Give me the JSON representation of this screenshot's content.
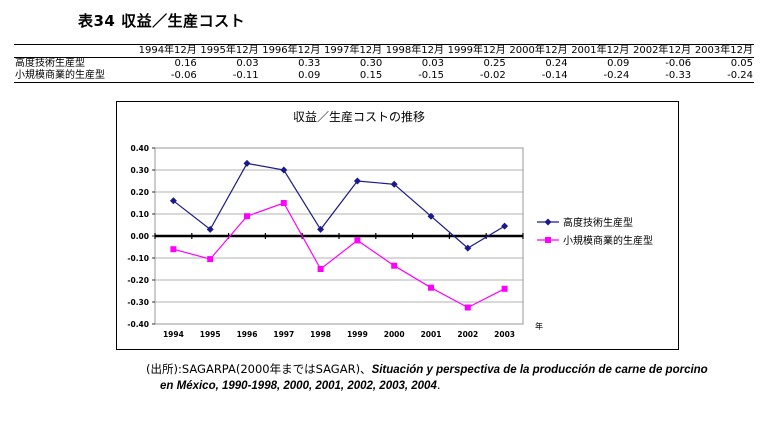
{
  "page": {
    "title": "表34 収益／生産コスト"
  },
  "table": {
    "columns": [
      "1994年12月",
      "1995年12月",
      "1996年12月",
      "1997年12月",
      "1998年12月",
      "1999年12月",
      "2000年12月",
      "2001年12月",
      "2002年12月",
      "2003年12月"
    ],
    "rows": [
      {
        "label": "高度技術生産型",
        "values": [
          "0.16",
          "0.03",
          "0.33",
          "0.30",
          "0.03",
          "0.25",
          "0.24",
          "0.09",
          "-0.06",
          "0.05"
        ]
      },
      {
        "label": "小規模商業的生産型",
        "values": [
          "-0.06",
          "-0.11",
          "0.09",
          "0.15",
          "-0.15",
          "-0.02",
          "-0.14",
          "-0.24",
          "-0.33",
          "-0.24"
        ]
      }
    ]
  },
  "chart_data": {
    "type": "line",
    "title": "収益／生産コストの推移",
    "x": [
      "1994",
      "1995",
      "1996",
      "1997",
      "1998",
      "1999",
      "2000",
      "2001",
      "2002",
      "2003"
    ],
    "xlabel": "年",
    "ylabel": "",
    "ylim": [
      -0.4,
      0.4
    ],
    "yticks": [
      "0.40",
      "0.30",
      "0.20",
      "0.10",
      "0.00",
      "-0.10",
      "-0.20",
      "-0.30",
      "-0.40"
    ],
    "grid": true,
    "legend_position": "right",
    "series": [
      {
        "name": "高度技術生産型",
        "color": "#1a1a8c",
        "marker": "diamond",
        "values": [
          0.16,
          0.03,
          0.33,
          0.3,
          0.03,
          0.25,
          0.235,
          0.09,
          -0.055,
          0.045
        ]
      },
      {
        "name": "小規模商業的生産型",
        "color": "#ff00ff",
        "marker": "square",
        "values": [
          -0.06,
          -0.105,
          0.09,
          0.15,
          -0.15,
          -0.02,
          -0.135,
          -0.235,
          -0.325,
          -0.24
        ]
      }
    ]
  },
  "source": {
    "prefix": "(出所)",
    "agency": ":SAGARPA(2000年まではSAGAR)、",
    "publication_line1": "Situación y perspectiva de la producción de carne de porcino",
    "publication_line2": "en México, 1990-1998, 2000, 2001, 2002, 2003, 2004",
    "suffix": "."
  }
}
